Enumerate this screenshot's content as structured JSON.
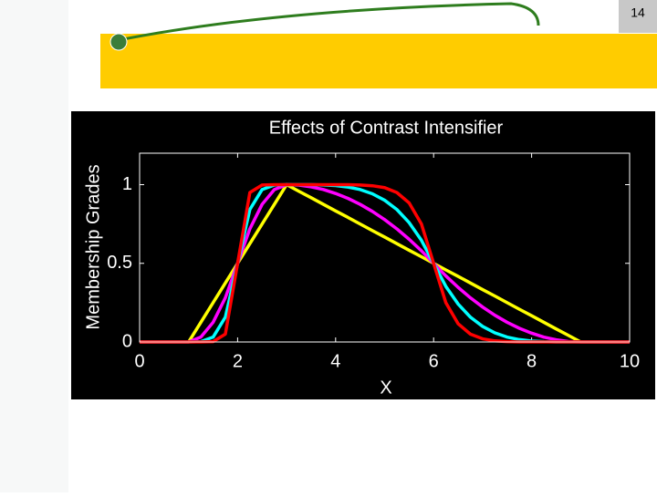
{
  "slide_number": "14",
  "chart_data": {
    "type": "line",
    "title": "Effects of Contrast Intensifier",
    "xlabel": "X",
    "ylabel": "Membership Grades",
    "x": [
      0,
      0.25,
      0.5,
      0.75,
      1,
      1.25,
      1.5,
      1.75,
      2,
      2.25,
      2.5,
      2.75,
      3,
      3.25,
      3.5,
      3.75,
      4,
      4.25,
      4.5,
      4.75,
      5,
      5.25,
      5.5,
      5.75,
      6,
      6.25,
      6.5,
      6.75,
      7,
      7.25,
      7.5,
      7.75,
      8,
      8.25,
      8.5,
      8.75,
      9,
      9.25,
      9.5,
      9.75,
      10
    ],
    "series": [
      {
        "color": "#ffff00",
        "values": [
          0,
          0,
          0,
          0,
          0,
          0.125,
          0.25,
          0.375,
          0.5,
          0.625,
          0.75,
          0.875,
          1,
          0.958,
          0.917,
          0.875,
          0.833,
          0.792,
          0.75,
          0.708,
          0.667,
          0.625,
          0.583,
          0.542,
          0.5,
          0.458,
          0.417,
          0.375,
          0.333,
          0.292,
          0.25,
          0.208,
          0.167,
          0.125,
          0.083,
          0.042,
          0,
          0,
          0,
          0,
          0
        ]
      },
      {
        "color": "#ff00ff",
        "values": [
          0,
          0,
          0,
          0,
          0,
          0.031,
          0.125,
          0.281,
          0.5,
          0.719,
          0.875,
          0.969,
          1,
          0.997,
          0.986,
          0.969,
          0.944,
          0.913,
          0.875,
          0.83,
          0.778,
          0.719,
          0.653,
          0.58,
          0.5,
          0.42,
          0.347,
          0.281,
          0.222,
          0.17,
          0.125,
          0.087,
          0.056,
          0.031,
          0.014,
          0.003,
          0,
          0,
          0,
          0,
          0
        ]
      },
      {
        "color": "#00ffff",
        "values": [
          0,
          0,
          0,
          0,
          0,
          0.002,
          0.031,
          0.158,
          0.5,
          0.842,
          0.969,
          0.998,
          1,
          1,
          1,
          0.998,
          0.994,
          0.985,
          0.969,
          0.942,
          0.901,
          0.842,
          0.759,
          0.647,
          0.5,
          0.353,
          0.241,
          0.158,
          0.099,
          0.058,
          0.031,
          0.015,
          0.006,
          0.002,
          0,
          0,
          0,
          0,
          0,
          0,
          0
        ]
      },
      {
        "color": "#ff0000",
        "values": [
          0,
          0,
          0,
          0,
          0,
          0,
          0.002,
          0.05,
          0.5,
          0.95,
          0.998,
          1,
          1,
          1,
          1,
          1,
          1,
          1,
          0.998,
          0.993,
          0.981,
          0.95,
          0.884,
          0.751,
          0.5,
          0.249,
          0.116,
          0.05,
          0.02,
          0.007,
          0.002,
          0,
          0,
          0,
          0,
          0,
          0,
          0,
          0,
          0,
          0
        ]
      }
    ],
    "xlim": [
      0,
      10
    ],
    "ylim": [
      0,
      1.2
    ],
    "xticks": [
      0,
      2,
      4,
      6,
      8,
      10
    ],
    "yticks": [
      0,
      0.5,
      1
    ]
  }
}
